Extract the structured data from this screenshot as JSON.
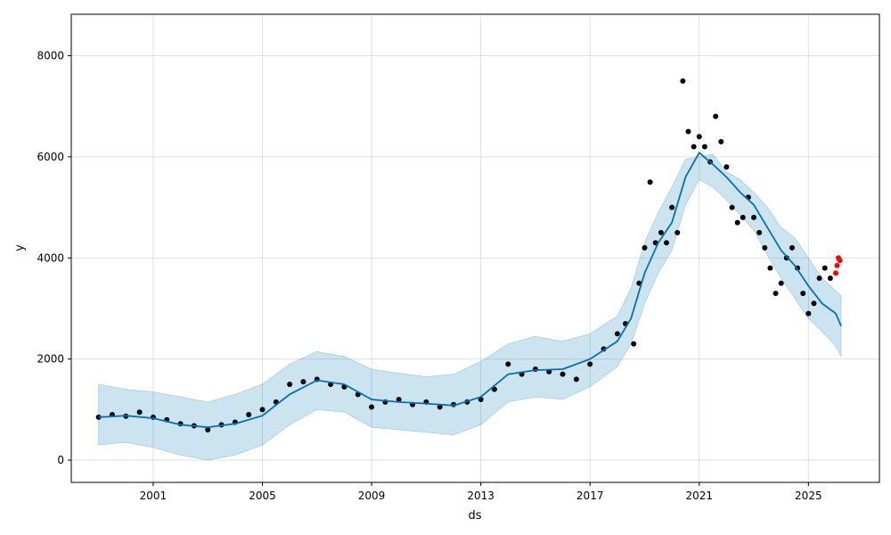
{
  "chart_data": {
    "type": "scatter",
    "title": "",
    "xlabel": "ds",
    "ylabel": "y",
    "x_ticks": [
      "2001",
      "2005",
      "2009",
      "2013",
      "2017",
      "2021",
      "2025"
    ],
    "x_tick_years": [
      2001,
      2005,
      2009,
      2013,
      2017,
      2021,
      2025
    ],
    "y_ticks": [
      0,
      2000,
      4000,
      6000,
      8000
    ],
    "xlim": [
      1998.0,
      2027.6
    ],
    "ylim": [
      -440,
      8820
    ],
    "grid": true,
    "colors": {
      "observed": "#000000",
      "recent": "#ff0000",
      "forecast": "#0072B2",
      "interval": "#0072B2"
    },
    "series": [
      {
        "kind": "observed",
        "x": [
          1999.0,
          1999.5,
          2000.0,
          2000.5,
          2001.0,
          2001.5,
          2002.0,
          2002.5,
          2003.0,
          2003.5,
          2004.0,
          2004.5,
          2005.0,
          2005.5,
          2006.0,
          2006.5,
          2007.0,
          2007.5,
          2008.0,
          2008.5,
          2009.0,
          2009.5,
          2010.0,
          2010.5,
          2011.0,
          2011.5,
          2012.0,
          2012.5,
          2013.0,
          2013.5,
          2014.0,
          2014.5,
          2015.0,
          2015.5,
          2016.0,
          2016.5,
          2017.0,
          2017.5,
          2018.0,
          2018.3,
          2018.6,
          2018.8,
          2019.0,
          2019.2,
          2019.4,
          2019.6,
          2019.8,
          2020.0,
          2020.2,
          2020.4,
          2020.6,
          2020.8,
          2021.0,
          2021.2,
          2021.4,
          2021.6,
          2021.8,
          2022.0,
          2022.2,
          2022.4,
          2022.6,
          2022.8,
          2023.0,
          2023.2,
          2023.4,
          2023.6,
          2023.8,
          2024.0,
          2024.2,
          2024.4,
          2024.6,
          2024.8,
          2025.0,
          2025.2,
          2025.4,
          2025.6,
          2025.8
        ],
        "y": [
          850,
          900,
          870,
          950,
          850,
          800,
          720,
          680,
          600,
          700,
          750,
          900,
          1000,
          1150,
          1500,
          1550,
          1600,
          1500,
          1450,
          1300,
          1050,
          1150,
          1200,
          1100,
          1150,
          1050,
          1100,
          1150,
          1200,
          1400,
          1900,
          1700,
          1800,
          1750,
          1700,
          1600,
          1900,
          2200,
          2500,
          2700,
          2300,
          3500,
          4200,
          5500,
          4300,
          4500,
          4300,
          5000,
          4500,
          7500,
          6500,
          6200,
          6400,
          6200,
          5900,
          6800,
          6300,
          5800,
          5000,
          4700,
          4800,
          5200,
          4800,
          4500,
          4200,
          3800,
          3300,
          3500,
          4000,
          4200,
          3800,
          3300,
          2900,
          3100,
          3600,
          3800,
          3600
        ]
      },
      {
        "kind": "recent",
        "x": [
          2026.0,
          2026.05,
          2026.1,
          2026.15
        ],
        "y": [
          3700,
          3850,
          4000,
          3950
        ]
      },
      {
        "kind": "forecast",
        "x": [
          1999.0,
          2000.0,
          2001.0,
          2002.0,
          2003.0,
          2004.0,
          2005.0,
          2006.0,
          2007.0,
          2008.0,
          2009.0,
          2010.0,
          2011.0,
          2012.0,
          2013.0,
          2014.0,
          2015.0,
          2016.0,
          2017.0,
          2018.0,
          2018.5,
          2019.0,
          2019.5,
          2020.0,
          2020.5,
          2021.0,
          2021.5,
          2022.0,
          2022.5,
          2023.0,
          2023.5,
          2024.0,
          2024.5,
          2025.0,
          2025.5,
          2026.0,
          2026.2
        ],
        "y": [
          850,
          880,
          830,
          700,
          650,
          720,
          880,
          1300,
          1580,
          1500,
          1200,
          1150,
          1120,
          1080,
          1250,
          1700,
          1780,
          1800,
          2000,
          2350,
          2800,
          3700,
          4300,
          4700,
          5600,
          6080,
          5850,
          5600,
          5300,
          5050,
          4600,
          4150,
          3850,
          3450,
          3100,
          2900,
          2650
        ]
      },
      {
        "kind": "interval-upper",
        "x": [
          1999.0,
          2000.0,
          2001.0,
          2002.0,
          2003.0,
          2004.0,
          2005.0,
          2006.0,
          2007.0,
          2008.0,
          2009.0,
          2010.0,
          2011.0,
          2012.0,
          2013.0,
          2014.0,
          2015.0,
          2016.0,
          2017.0,
          2018.0,
          2018.5,
          2019.0,
          2019.5,
          2020.0,
          2020.5,
          2021.0,
          2021.5,
          2022.0,
          2022.5,
          2023.0,
          2023.5,
          2024.0,
          2024.5,
          2025.0,
          2025.5,
          2026.0,
          2026.2
        ],
        "y": [
          1500,
          1400,
          1350,
          1250,
          1150,
          1300,
          1500,
          1900,
          2150,
          2050,
          1800,
          1720,
          1650,
          1700,
          1950,
          2300,
          2450,
          2350,
          2500,
          2850,
          3400,
          4300,
          4900,
          5400,
          5950,
          6000,
          6050,
          5700,
          5550,
          5300,
          5000,
          4600,
          4400,
          4000,
          3600,
          3350,
          3250
        ]
      },
      {
        "kind": "interval-lower",
        "x": [
          1999.0,
          2000.0,
          2001.0,
          2002.0,
          2003.0,
          2004.0,
          2005.0,
          2006.0,
          2007.0,
          2008.0,
          2009.0,
          2010.0,
          2011.0,
          2012.0,
          2013.0,
          2014.0,
          2015.0,
          2016.0,
          2017.0,
          2018.0,
          2018.5,
          2019.0,
          2019.5,
          2020.0,
          2020.5,
          2021.0,
          2021.5,
          2022.0,
          2022.5,
          2023.0,
          2023.5,
          2024.0,
          2024.5,
          2025.0,
          2025.5,
          2026.0,
          2026.2
        ],
        "y": [
          300,
          350,
          250,
          100,
          0,
          100,
          300,
          700,
          1000,
          950,
          650,
          600,
          550,
          500,
          700,
          1150,
          1250,
          1200,
          1450,
          1850,
          2300,
          3100,
          3700,
          4150,
          5050,
          5550,
          5400,
          5150,
          4850,
          4550,
          4050,
          3600,
          3200,
          2800,
          2550,
          2250,
          2050
        ]
      }
    ]
  }
}
